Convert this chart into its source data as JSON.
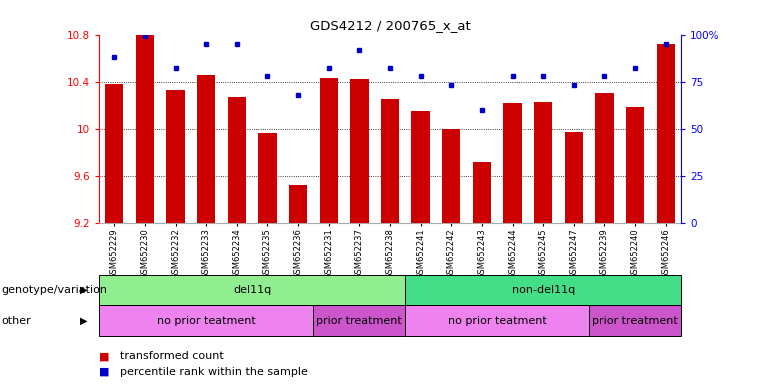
{
  "title": "GDS4212 / 200765_x_at",
  "samples": [
    "GSM652229",
    "GSM652230",
    "GSM652232",
    "GSM652233",
    "GSM652234",
    "GSM652235",
    "GSM652236",
    "GSM652231",
    "GSM652237",
    "GSM652238",
    "GSM652241",
    "GSM652242",
    "GSM652243",
    "GSM652244",
    "GSM652245",
    "GSM652247",
    "GSM652239",
    "GSM652240",
    "GSM652246"
  ],
  "red_values": [
    10.38,
    10.8,
    10.33,
    10.46,
    10.27,
    9.96,
    9.52,
    10.43,
    10.42,
    10.25,
    10.15,
    10.0,
    9.72,
    10.22,
    10.23,
    9.97,
    10.3,
    10.18,
    10.72
  ],
  "blue_pct": [
    88,
    99,
    82,
    95,
    95,
    78,
    68,
    82,
    92,
    82,
    78,
    73,
    60,
    78,
    78,
    73,
    78,
    82,
    95
  ],
  "ymin": 9.2,
  "ymax": 10.8,
  "yticks": [
    9.2,
    9.6,
    10.0,
    10.4,
    10.8
  ],
  "ytick_labels": [
    "9.2",
    "9.6",
    "10",
    "10.4",
    "10.8"
  ],
  "right_yticks": [
    0,
    25,
    50,
    75,
    100
  ],
  "right_ytick_labels": [
    "0",
    "25",
    "50",
    "75",
    "100%"
  ],
  "bar_color": "#cc0000",
  "dot_color": "#0000cc",
  "grid_lines": [
    9.6,
    10.0,
    10.4
  ],
  "genotype_groups": [
    {
      "label": "del11q",
      "start": 0,
      "end": 9,
      "color": "#90ee90"
    },
    {
      "label": "non-del11q",
      "start": 10,
      "end": 18,
      "color": "#44dd88"
    }
  ],
  "other_groups": [
    {
      "label": "no prior teatment",
      "start": 0,
      "end": 6,
      "color": "#ee82ee"
    },
    {
      "label": "prior treatment",
      "start": 7,
      "end": 9,
      "color": "#cc55cc"
    },
    {
      "label": "no prior teatment",
      "start": 10,
      "end": 15,
      "color": "#ee82ee"
    },
    {
      "label": "prior treatment",
      "start": 16,
      "end": 18,
      "color": "#cc55cc"
    }
  ],
  "legend_items": [
    {
      "label": "transformed count",
      "color": "#cc0000"
    },
    {
      "label": "percentile rank within the sample",
      "color": "#0000cc"
    }
  ],
  "row_labels": [
    "genotype/variation",
    "other"
  ],
  "bar_width": 0.6,
  "fig_width": 7.61,
  "fig_height": 3.84
}
